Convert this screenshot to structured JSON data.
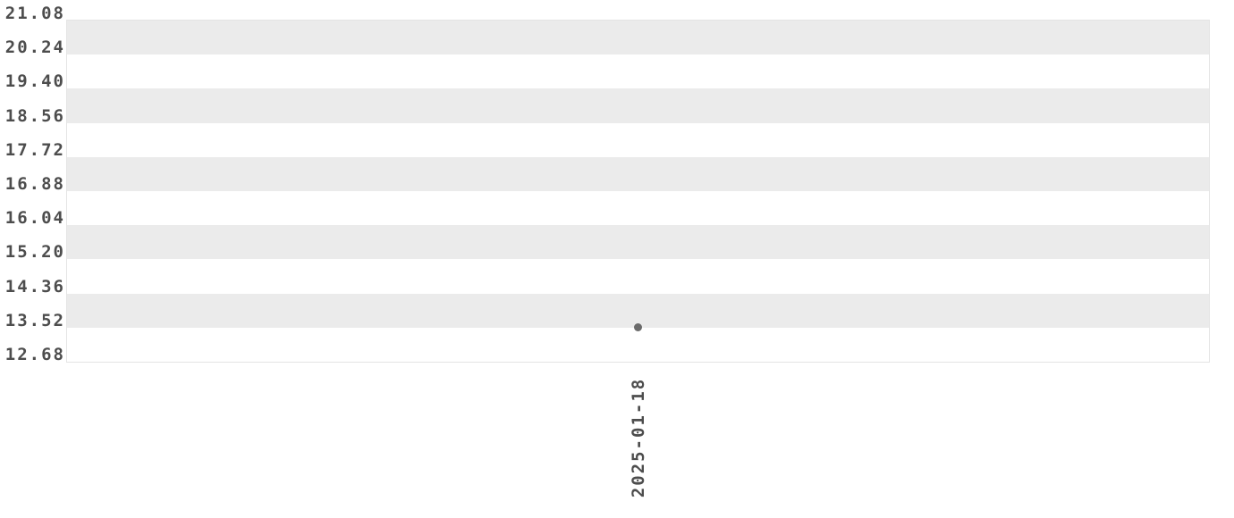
{
  "chart_data": {
    "type": "scatter",
    "title": "",
    "xlabel": "",
    "ylabel": "",
    "x": [
      "2025-01-18"
    ],
    "series": [
      {
        "name": "",
        "values": [
          13.52
        ]
      }
    ],
    "points": [
      {
        "x": "2025-01-18",
        "y": 13.52
      }
    ],
    "x_tick_labels": [
      "2025-01-18"
    ],
    "x_tick_rotation_deg": -90,
    "y_tick_labels": [
      "21.08",
      "20.24",
      "19.40",
      "18.56",
      "17.72",
      "16.88",
      "16.04",
      "15.20",
      "14.36",
      "13.52",
      "12.68"
    ],
    "y_ticks": [
      21.08,
      20.24,
      19.4,
      18.56,
      17.72,
      16.88,
      16.04,
      15.2,
      14.36,
      13.52,
      12.68
    ],
    "ylim": [
      12.68,
      21.08
    ],
    "grid": "alternating-horizontal-bands",
    "legend": "none",
    "colors": {
      "background": "#ffffff",
      "band_fill": "#ebebeb",
      "band_alt_fill": "#ffffff",
      "plot_border": "#e4e4e4",
      "tick_text": "#4d4d4d",
      "point_fill": "#6b6b6b"
    }
  }
}
